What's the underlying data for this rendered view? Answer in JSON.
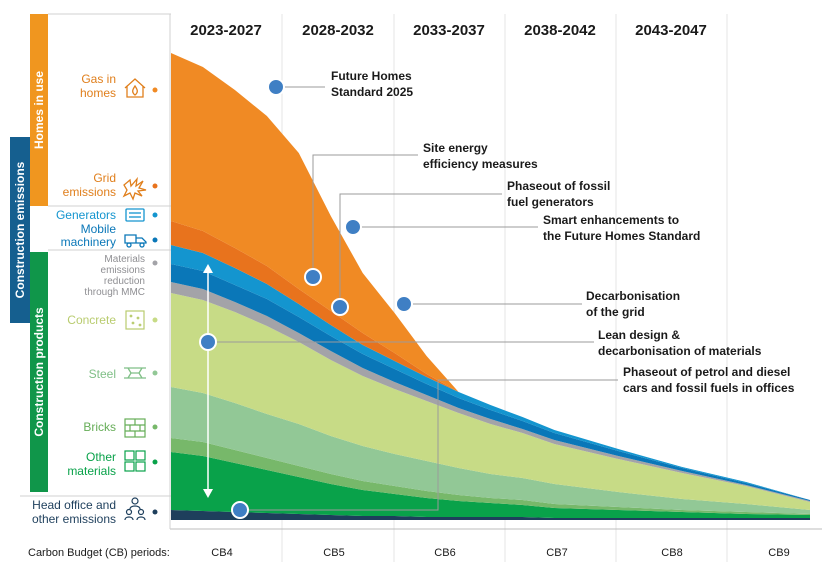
{
  "periods": [
    "2023-2027",
    "2028-2032",
    "2033-2037",
    "2038-2042",
    "2043-2047"
  ],
  "cb_label": "Carbon Budget (CB) periods:",
  "cb_periods": [
    "CB4",
    "CB5",
    "CB6",
    "CB7",
    "CB8",
    "CB9"
  ],
  "side_labels": {
    "homes": "Homes in use",
    "construction_emissions": "Construction emissions",
    "construction_products": "Construction products"
  },
  "row_labels": {
    "gas": [
      "Gas in",
      "homes"
    ],
    "grid": [
      "Grid",
      "emissions"
    ],
    "generators": [
      "Generators"
    ],
    "mobile": [
      "Mobile",
      "machinery"
    ],
    "mmc": [
      "Materials",
      "emissions",
      "reduction",
      "through MMC"
    ],
    "concrete": [
      "Concrete"
    ],
    "steel": [
      "Steel"
    ],
    "bricks": [
      "Bricks"
    ],
    "other": [
      "Other",
      "materials"
    ],
    "head": [
      "Head office and",
      "other emissions"
    ]
  },
  "annotations": {
    "fhs2025": [
      "Future Homes",
      "Standard 2025"
    ],
    "site": [
      "Site energy",
      "efficiency measures"
    ],
    "fossil": [
      "Phaseout of fossil",
      "fuel generators"
    ],
    "smart": [
      "Smart enhancements to",
      "the Future Homes Standard"
    ],
    "grid": [
      "Decarbonisation",
      "of the grid"
    ],
    "lean": [
      "Lean design &",
      "decarbonisation of materials"
    ],
    "petrol": [
      "Phaseout of petrol and diesel",
      "cars and fossil fuels in offices"
    ]
  },
  "colors": {
    "gas": "#f08a24",
    "grid": "#e8731d",
    "generators": "#1495cf",
    "mobile": "#0a77b8",
    "mmc": "#a3a3a8",
    "concrete": "#c7db86",
    "steel": "#92c896",
    "bricks": "#77b86a",
    "other": "#09a24a",
    "head": "#1e3f5c",
    "homes_bar": "#f0961f",
    "emissions_bar": "#155f8f",
    "products_bar": "#10964a",
    "marker": "#3f7fc4"
  },
  "icons": {
    "gas": "house-flame-icon",
    "grid": "power-burst-icon",
    "generators": "generator-icon",
    "mobile": "truck-icon",
    "concrete": "concrete-block-icon",
    "steel": "steel-beam-icon",
    "bricks": "brick-wall-icon",
    "other": "materials-icon",
    "head": "people-icon"
  },
  "chart_data": {
    "type": "area",
    "stacked": true,
    "x": [
      0,
      0.05,
      0.1,
      0.15,
      0.2,
      0.25,
      0.3,
      0.35,
      0.4,
      0.45,
      0.5,
      0.55,
      0.6,
      0.7,
      0.8,
      0.9,
      1.0
    ],
    "layers": [
      {
        "name": "Head office and other emissions",
        "values": [
          10,
          9,
          8,
          7,
          6,
          5,
          4,
          4,
          3,
          3,
          3,
          3,
          2,
          2,
          2,
          2,
          2
        ]
      },
      {
        "name": "Other materials",
        "values": [
          58,
          55,
          49,
          43,
          37,
          31,
          26,
          22,
          19,
          16,
          14,
          12,
          10,
          8,
          6,
          4,
          3
        ]
      },
      {
        "name": "Bricks",
        "values": [
          14,
          14,
          13,
          12,
          11,
          10,
          9,
          8,
          7,
          6,
          5,
          5,
          4,
          3,
          2,
          2,
          1
        ]
      },
      {
        "name": "Steel",
        "values": [
          51,
          49,
          47,
          44,
          42,
          38,
          35,
          32,
          30,
          27,
          24,
          22,
          20,
          15,
          11,
          8,
          4
        ]
      },
      {
        "name": "Concrete",
        "values": [
          94,
          93,
          91,
          88,
          82,
          76,
          70,
          65,
          60,
          55,
          50,
          45,
          40,
          33,
          26,
          18,
          8
        ]
      },
      {
        "name": "Materials emissions reduction through MMC",
        "values": [
          11,
          11,
          10,
          10,
          9,
          9,
          8,
          7,
          6,
          5,
          5,
          4,
          4,
          3,
          2,
          1,
          1
        ]
      },
      {
        "name": "Mobile machinery",
        "values": [
          18,
          18,
          17,
          17,
          16,
          15,
          14,
          13,
          11,
          10,
          9,
          8,
          7,
          5,
          3,
          2,
          1
        ]
      },
      {
        "name": "Generators",
        "values": [
          19,
          18,
          17,
          15,
          13,
          11,
          9,
          8,
          7,
          6,
          5,
          4,
          3,
          2,
          1,
          1,
          0
        ]
      },
      {
        "name": "Grid emissions",
        "values": [
          24,
          22,
          20,
          18,
          15,
          14,
          12,
          8,
          3,
          0,
          0,
          0,
          0,
          0,
          0,
          0,
          0
        ]
      },
      {
        "name": "Gas in homes",
        "values": [
          168,
          164,
          158,
          150,
          136,
          95,
          60,
          40,
          18,
          0,
          0,
          0,
          0,
          0,
          0,
          0,
          0
        ]
      }
    ],
    "markers": [
      {
        "name": "Future Homes Standard 2025",
        "x": 0.165
      },
      {
        "name": "Site energy efficiency measures",
        "x": 0.22
      },
      {
        "name": "Phaseout of fossil fuel generators",
        "x": 0.265
      },
      {
        "name": "Smart enhancements to the Future Homes Standard",
        "x": 0.285
      },
      {
        "name": "Decarbonisation of the grid",
        "x": 0.36
      },
      {
        "name": "Lean design & decarbonisation of materials",
        "x": 0.06
      },
      {
        "name": "Phaseout of petrol and diesel cars and fossil fuels in offices",
        "x": 0.11
      }
    ],
    "grid": true
  }
}
